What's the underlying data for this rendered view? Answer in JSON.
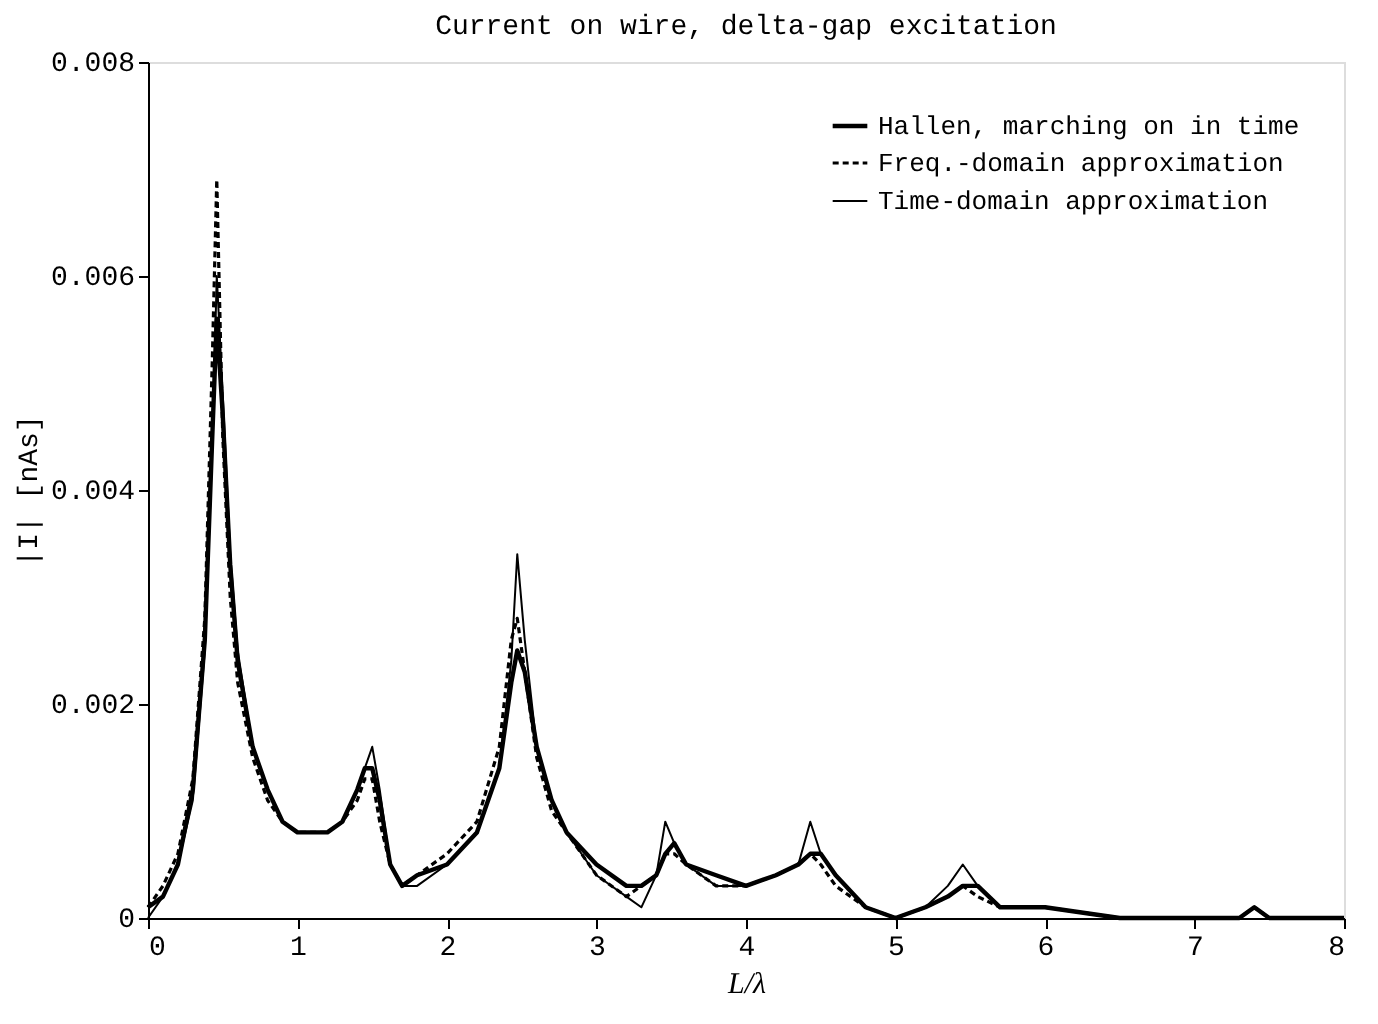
{
  "chart_data": {
    "type": "line",
    "title": "Current on wire, delta-gap excitation",
    "xlabel": "L/λ",
    "ylabel": "|I|  [nAs]",
    "x": [
      0,
      0.1,
      0.2,
      0.3,
      0.38,
      0.43,
      0.46,
      0.5,
      0.55,
      0.6,
      0.7,
      0.8,
      0.9,
      1.0,
      1.1,
      1.2,
      1.3,
      1.4,
      1.45,
      1.5,
      1.55,
      1.62,
      1.7,
      1.8,
      2.0,
      2.2,
      2.35,
      2.43,
      2.47,
      2.52,
      2.6,
      2.7,
      2.8,
      3.0,
      3.2,
      3.3,
      3.4,
      3.46,
      3.52,
      3.6,
      3.8,
      4.0,
      4.2,
      4.35,
      4.43,
      4.5,
      4.6,
      4.8,
      5.0,
      5.2,
      5.35,
      5.45,
      5.55,
      5.7,
      6.0,
      6.5,
      7.0,
      7.3,
      7.4,
      7.5,
      8.0
    ],
    "series": [
      {
        "name": "Hallen, marching on in time",
        "color": "#000000",
        "line_style": "solid",
        "values": [
          0.0001,
          0.0002,
          0.0005,
          0.0012,
          0.0026,
          0.0045,
          0.0056,
          0.0047,
          0.0033,
          0.0024,
          0.0016,
          0.0012,
          0.0009,
          0.0008,
          0.0008,
          0.0008,
          0.0009,
          0.0012,
          0.0014,
          0.0014,
          0.0011,
          0.0005,
          0.0003,
          0.0004,
          0.0005,
          0.0008,
          0.0014,
          0.0022,
          0.0025,
          0.0023,
          0.0016,
          0.0011,
          0.0008,
          0.0005,
          0.0003,
          0.0003,
          0.0004,
          0.0006,
          0.0007,
          0.0005,
          0.0004,
          0.0003,
          0.0004,
          0.0005,
          0.0006,
          0.0006,
          0.0004,
          0.0001,
          0,
          0.0001,
          0.0002,
          0.0003,
          0.0003,
          0.0001,
          0.0001,
          0,
          0,
          0,
          0.0001,
          0,
          0
        ]
      },
      {
        "name": "Freq.-domain approximation",
        "color": "#000000",
        "line_style": "dashed",
        "values": [
          0.0001,
          0.0003,
          0.0006,
          0.0013,
          0.0028,
          0.0052,
          0.0069,
          0.0045,
          0.003,
          0.0022,
          0.0015,
          0.0011,
          0.0009,
          0.0008,
          0.0008,
          0.0008,
          0.0009,
          0.0011,
          0.0013,
          0.0013,
          0.0009,
          0.0005,
          0.0003,
          0.0004,
          0.0006,
          0.0009,
          0.0016,
          0.0026,
          0.0028,
          0.0023,
          0.0015,
          0.001,
          0.0008,
          0.0004,
          0.0002,
          0.0003,
          0.0004,
          0.0006,
          0.0006,
          0.0005,
          0.0003,
          0.0003,
          0.0004,
          0.0005,
          0.0006,
          0.0005,
          0.0003,
          0.0001,
          0,
          0.0001,
          0.0002,
          0.0003,
          0.0002,
          0.0001,
          0.0001,
          0,
          0,
          0,
          0.0001,
          0,
          0
        ]
      },
      {
        "name": "Time-domain approximation",
        "color": "#000000",
        "line_style": "solid",
        "values": [
          0,
          0.0002,
          0.0005,
          0.0011,
          0.0025,
          0.0044,
          0.006,
          0.0049,
          0.0034,
          0.0025,
          0.0016,
          0.0012,
          0.0009,
          0.0008,
          0.0008,
          0.0008,
          0.0009,
          0.0012,
          0.0014,
          0.0016,
          0.0012,
          0.0005,
          0.0003,
          0.0003,
          0.0005,
          0.0008,
          0.0014,
          0.0024,
          0.0034,
          0.0026,
          0.0016,
          0.0011,
          0.0008,
          0.0004,
          0.0002,
          0.0001,
          0.0004,
          0.0009,
          0.0007,
          0.0005,
          0.0003,
          0.0003,
          0.0004,
          0.0005,
          0.0009,
          0.0006,
          0.0004,
          0.0001,
          0,
          0.0001,
          0.0003,
          0.0005,
          0.0003,
          0.0001,
          0.0001,
          0,
          0,
          0,
          0.0001,
          0,
          0
        ]
      }
    ],
    "xlim": [
      0,
      8
    ],
    "xticks": [
      0,
      1,
      2,
      3,
      4,
      5,
      6,
      7,
      8
    ],
    "ylim": [
      0,
      0.008
    ],
    "yticks": [
      0,
      0.002,
      0.004,
      0.006,
      0.008
    ],
    "grid": false,
    "legend": "top right",
    "marker": "none"
  }
}
